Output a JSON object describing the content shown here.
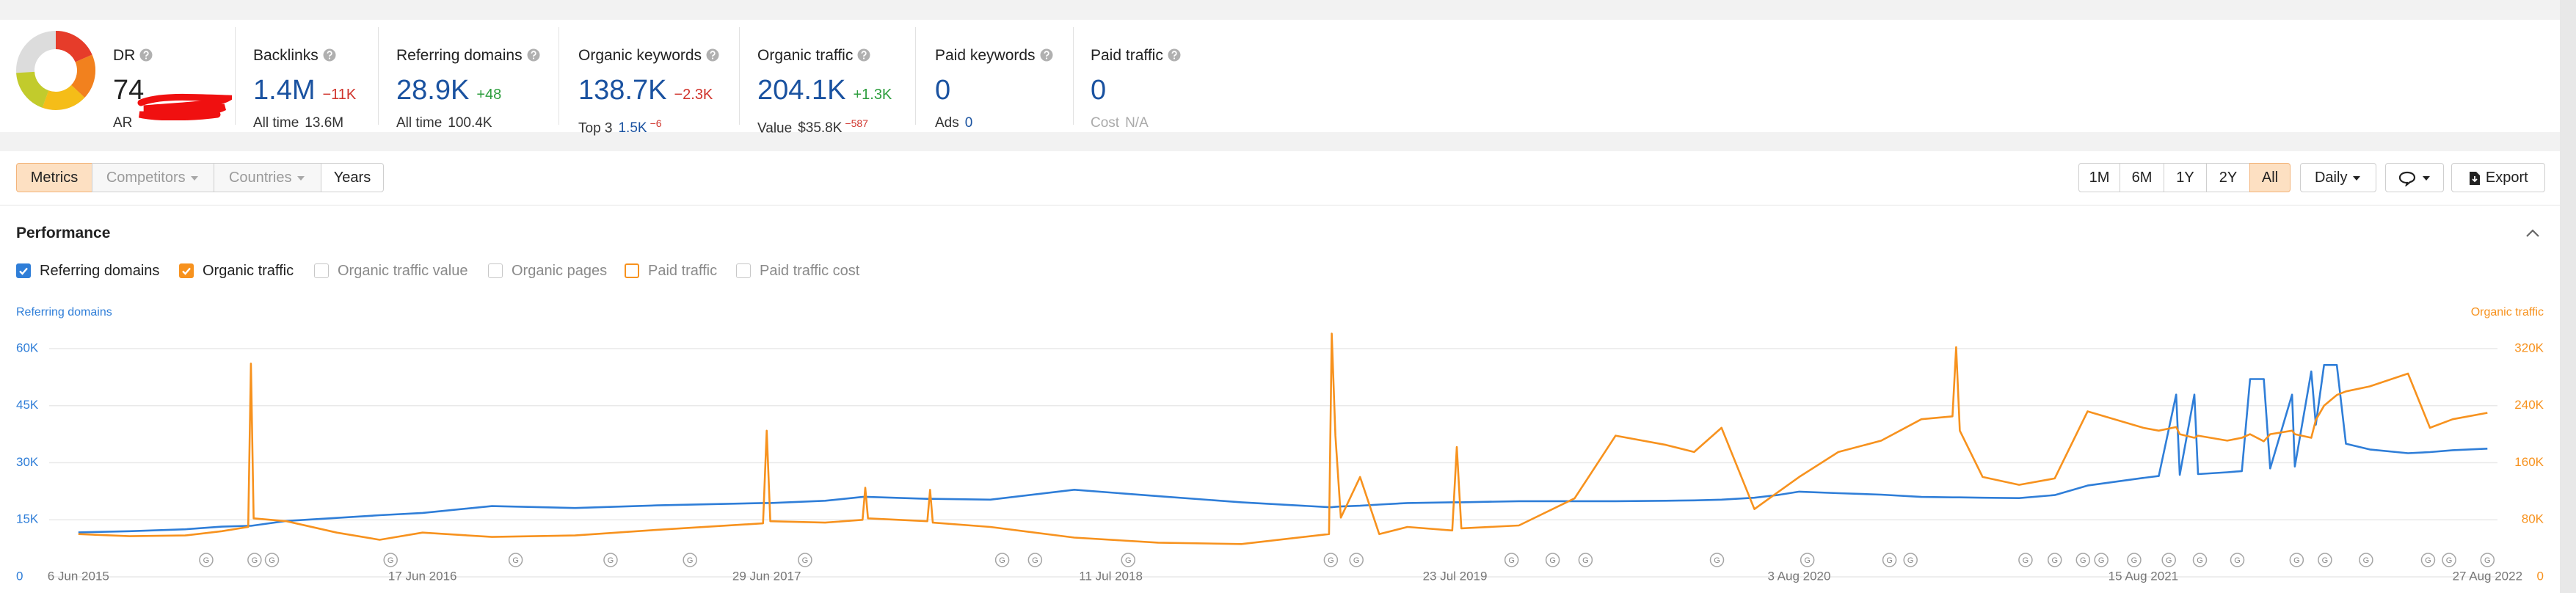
{
  "domain_rating": {
    "label": "DR",
    "value": 74,
    "sub_label": "AR"
  },
  "metrics": [
    {
      "label": "Backlinks",
      "value": "1.4M",
      "change": "−11K",
      "sub_label": "All time",
      "sub_value": "13.6M"
    },
    {
      "label": "Referring domains",
      "value": "28.9K",
      "change": "+48",
      "sub_label": "All time",
      "sub_value": "100.4K"
    },
    {
      "label": "Organic keywords",
      "value": "138.7K",
      "change": "−2.3K",
      "sub_label": "Top 3",
      "sub_value": "1.5K",
      "sub_change": "−6"
    },
    {
      "label": "Organic traffic",
      "value": "204.1K",
      "change": "+1.3K",
      "sub_label": "Value",
      "sub_value": "$35.8K",
      "sub_change": "−587"
    },
    {
      "label": "Paid keywords",
      "value": 0,
      "sub_label": "Ads",
      "sub_value": 0
    },
    {
      "label": "Paid traffic",
      "value": 0,
      "sub_label": "Cost",
      "sub_value": "N/A"
    }
  ],
  "toolbar": {
    "tabs": [
      "Metrics",
      "Competitors",
      "Countries",
      "Years"
    ],
    "ranges": [
      "1M",
      "6M",
      "1Y",
      "2Y",
      "All"
    ],
    "interval": "Daily",
    "export": "Export"
  },
  "section_title": "Performance",
  "chart_data": {
    "type": "line",
    "y_label": "Referring domains",
    "y2_label": "Organic traffic",
    "x": [
      "2015-06-06",
      "2015-08-01",
      "2015-10-01",
      "2015-11-10",
      "2015-12-09",
      "2015-12-12",
      "2015-12-15",
      "2016-01-20",
      "2016-03-15",
      "2016-05-01",
      "2016-06-17",
      "2016-09-01",
      "2016-12-01",
      "2017-03-01",
      "2017-06-25",
      "2017-06-29",
      "2017-07-03",
      "2017-09-01",
      "2017-10-12",
      "2017-10-15",
      "2017-10-18",
      "2017-12-22",
      "2017-12-25",
      "2017-12-28",
      "2018-03-01",
      "2018-06-01",
      "2018-09-01",
      "2018-12-01",
      "2019-03-07",
      "2019-03-10",
      "2019-03-14",
      "2019-03-20",
      "2019-04-10",
      "2019-05-01",
      "2019-06-01",
      "2019-07-20",
      "2019-07-25",
      "2019-07-30",
      "2019-10-01",
      "2019-12-01",
      "2020-01-15",
      "2020-03-10",
      "2020-04-10",
      "2020-05-10",
      "2020-06-15",
      "2020-07-10",
      "2020-08-03",
      "2020-09-15",
      "2020-11-01",
      "2020-12-15",
      "2021-01-18",
      "2021-01-22",
      "2021-01-26",
      "2021-02-20",
      "2021-04-01",
      "2021-05-10",
      "2021-06-15",
      "2021-08-15",
      "2021-09-01",
      "2021-09-20",
      "2021-09-24",
      "2021-10-10",
      "2021-10-14",
      "2021-11-15",
      "2021-12-01",
      "2021-12-10",
      "2021-12-25",
      "2022-01-01",
      "2022-01-25",
      "2022-01-28",
      "2022-02-15",
      "2022-02-20",
      "2022-03-01",
      "2022-03-15",
      "2022-03-25",
      "2022-04-20",
      "2022-06-01",
      "2022-06-25",
      "2022-07-20",
      "2022-08-27"
    ],
    "xlim": [
      "2015-05-05",
      "2022-09-07"
    ],
    "xticks": [
      {
        "value": "2015-06-06",
        "label": "6 Jun 2015"
      },
      {
        "value": "2016-06-17",
        "label": "17 Jun 2016"
      },
      {
        "value": "2017-06-29",
        "label": "29 Jun 2017"
      },
      {
        "value": "2018-07-11",
        "label": "11 Jul 2018"
      },
      {
        "value": "2019-07-23",
        "label": "23 Jul 2019"
      },
      {
        "value": "2020-08-03",
        "label": "3 Aug 2020"
      },
      {
        "value": "2021-08-15",
        "label": "15 Aug 2021"
      },
      {
        "value": "2022-08-27",
        "label": "27 Aug 2022"
      }
    ],
    "ylim": [
      0,
      60000
    ],
    "yticks": [
      0,
      {
        "value": 15000,
        "label": "15K"
      },
      {
        "value": 30000,
        "label": "30K"
      },
      {
        "value": 45000,
        "label": "45K"
      },
      {
        "value": 60000,
        "label": "60K"
      }
    ],
    "y2lim": [
      0,
      320000
    ],
    "y2ticks": [
      0,
      {
        "value": 80000,
        "label": "80K"
      },
      {
        "value": 160000,
        "label": "160K"
      },
      {
        "value": 240000,
        "label": "240K"
      },
      {
        "value": 320000,
        "label": "320K"
      }
    ],
    "grid": true,
    "series": [
      {
        "name": "Referring domains",
        "color": "#2f7ed8",
        "values": [
          11700,
          12000,
          12500,
          13200,
          13400,
          13400,
          13500,
          14700,
          15500,
          16200,
          16800,
          18600,
          18100,
          18800,
          19400,
          19400,
          19400,
          20000,
          21000,
          21000,
          21000,
          20500,
          20500,
          20500,
          20300,
          22900,
          21200,
          19600,
          18300,
          18300,
          18400,
          18500,
          18700,
          19000,
          19400,
          19600,
          19600,
          19600,
          19900,
          19900,
          19900,
          20000,
          20100,
          20300,
          20800,
          21500,
          22400,
          22000,
          21600,
          21000,
          20900,
          20900,
          20900,
          20800,
          20700,
          21500,
          24000,
          26000,
          26500,
          47900,
          26800,
          47900,
          27000,
          27500,
          27800,
          52000,
          52000,
          28500,
          47900,
          29000,
          54000,
          40000,
          55700,
          55700,
          35000,
          33500,
          32500,
          32800,
          33300,
          33700
        ]
      },
      {
        "name": "Organic traffic",
        "color": "#f7921e",
        "axis": "y2",
        "values": [
          60000,
          57000,
          58000,
          64000,
          70000,
          299000,
          82000,
          78000,
          62000,
          52000,
          62000,
          56000,
          58000,
          66000,
          75000,
          205000,
          78000,
          76000,
          80000,
          125000,
          82000,
          78000,
          122000,
          76000,
          70000,
          55000,
          48000,
          46000,
          60000,
          341000,
          198000,
          83000,
          140000,
          60000,
          70000,
          65000,
          182000,
          68000,
          72000,
          110000,
          198000,
          185000,
          175000,
          209000,
          95000,
          118000,
          140000,
          175000,
          191000,
          221000,
          225000,
          322000,
          205000,
          140000,
          129000,
          138000,
          232000,
          209000,
          205000,
          210000,
          200000,
          195000,
          198000,
          191000,
          195000,
          200000,
          190000,
          200000,
          205000,
          200000,
          195000,
          220000,
          240000,
          255000,
          260000,
          267000,
          285000,
          209000,
          221000,
          230000
        ]
      }
    ],
    "other_metrics": [
      {
        "label": "Organic traffic value"
      },
      {
        "label": "Organic pages"
      },
      {
        "label": "Paid traffic",
        "color": "#f7921e"
      },
      {
        "label": "Paid traffic cost"
      }
    ],
    "update_markers": {
      "label": "G",
      "x": [
        "2015-10-24",
        "2015-12-16",
        "2016-01-04",
        "2016-05-13",
        "2016-09-27",
        "2017-01-09",
        "2017-04-06",
        "2017-08-10",
        "2018-03-14",
        "2018-04-19",
        "2018-07-30",
        "2019-03-09",
        "2019-04-06",
        "2019-09-23",
        "2019-11-07",
        "2019-12-13",
        "2020-05-05",
        "2020-08-12",
        "2020-11-10",
        "2020-12-03",
        "2021-04-08",
        "2021-05-10",
        "2021-06-10",
        "2021-06-30",
        "2021-08-05",
        "2021-09-12",
        "2021-10-16",
        "2021-11-26",
        "2022-01-30",
        "2022-03-02",
        "2022-04-16",
        "2022-06-23",
        "2022-07-16",
        "2022-08-27"
      ]
    }
  }
}
